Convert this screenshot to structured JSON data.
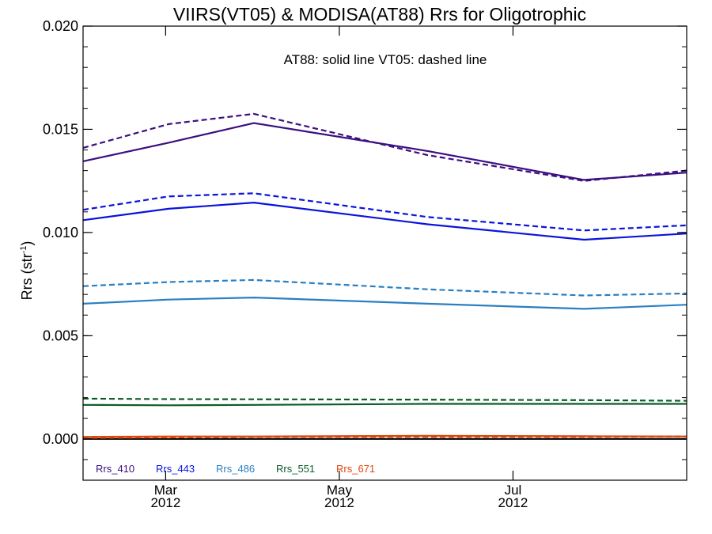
{
  "chart_data": {
    "type": "line",
    "title": "VIIRS(VT05) & MODISA(AT88)  Rrs for Oligotrophic",
    "annotation": "AT88: solid line   VT05: dashed line",
    "ylabel": "Rrs (str",
    "ylabel_sup": "-1",
    "ylabel_close": ")",
    "ylim": [
      -0.002,
      0.02
    ],
    "yticks": [
      0.0,
      0.005,
      0.01,
      0.015,
      0.02
    ],
    "ytick_labels": [
      "0.000",
      "0.005",
      "0.010",
      "0.015",
      "0.020"
    ],
    "xlim": [
      "2012-02-01",
      "2012-08-31"
    ],
    "xticks": [
      {
        "date": "2012-03-01",
        "label": "Mar",
        "year": "2012"
      },
      {
        "date": "2012-05-01",
        "label": "May",
        "year": "2012"
      },
      {
        "date": "2012-07-01",
        "label": "Jul",
        "year": "2012"
      }
    ],
    "x": [
      "2012-02-01",
      "2012-03-02",
      "2012-04-01",
      "2012-06-01",
      "2012-07-26",
      "2012-08-31"
    ],
    "series": [
      {
        "name": "Rrs_410",
        "sensor": "AT88",
        "style": "solid",
        "color": "#3b0f80",
        "values": [
          0.01345,
          0.01435,
          0.0153,
          0.01395,
          0.01255,
          0.0129
        ]
      },
      {
        "name": "Rrs_410",
        "sensor": "VT05",
        "style": "dashed",
        "color": "#3b0f80",
        "values": [
          0.0141,
          0.01525,
          0.01575,
          0.01375,
          0.0125,
          0.013
        ]
      },
      {
        "name": "Rrs_443",
        "sensor": "AT88",
        "style": "solid",
        "color": "#0a14dc",
        "values": [
          0.0106,
          0.01115,
          0.01145,
          0.0104,
          0.00965,
          0.00995
        ]
      },
      {
        "name": "Rrs_443",
        "sensor": "VT05",
        "style": "dashed",
        "color": "#0a14dc",
        "values": [
          0.0111,
          0.01175,
          0.0119,
          0.01075,
          0.0101,
          0.01035
        ]
      },
      {
        "name": "Rrs_486",
        "sensor": "AT88",
        "style": "solid",
        "color": "#2a7fc2",
        "values": [
          0.00655,
          0.00675,
          0.00685,
          0.00655,
          0.0063,
          0.0065
        ]
      },
      {
        "name": "Rrs_486",
        "sensor": "VT05",
        "style": "dashed",
        "color": "#2a7fc2",
        "values": [
          0.0074,
          0.0076,
          0.0077,
          0.00725,
          0.00695,
          0.00705
        ]
      },
      {
        "name": "Rrs_551",
        "sensor": "AT88",
        "style": "solid",
        "color": "#0b5c2a",
        "values": [
          0.00165,
          0.00163,
          0.00165,
          0.0017,
          0.0017,
          0.0017
        ]
      },
      {
        "name": "Rrs_551",
        "sensor": "VT05",
        "style": "dashed",
        "color": "#0b5c2a",
        "values": [
          0.00195,
          0.00193,
          0.00192,
          0.0019,
          0.00188,
          0.00185
        ]
      },
      {
        "name": "Rrs_671",
        "sensor": "AT88",
        "style": "solid",
        "color": "#e0470a",
        "values": [
          0.0001,
          0.00012,
          0.00012,
          0.00015,
          0.00013,
          0.00012
        ]
      },
      {
        "name": "Rrs_671",
        "sensor": "VT05",
        "style": "dashed",
        "color": "#e0470a",
        "values": [
          5e-05,
          7e-05,
          0.0001,
          0.0001,
          0.0001,
          0.00012
        ]
      }
    ],
    "legend": [
      {
        "label": "Rrs_410",
        "color": "#3b0f80"
      },
      {
        "label": "Rrs_443",
        "color": "#0a14dc"
      },
      {
        "label": "Rrs_486",
        "color": "#2a7fc2"
      },
      {
        "label": "Rrs_551",
        "color": "#0b5c2a"
      },
      {
        "label": "Rrs_671",
        "color": "#e0470a"
      }
    ],
    "legend_position": "bottom-left",
    "zero_line": true,
    "grid": false
  }
}
